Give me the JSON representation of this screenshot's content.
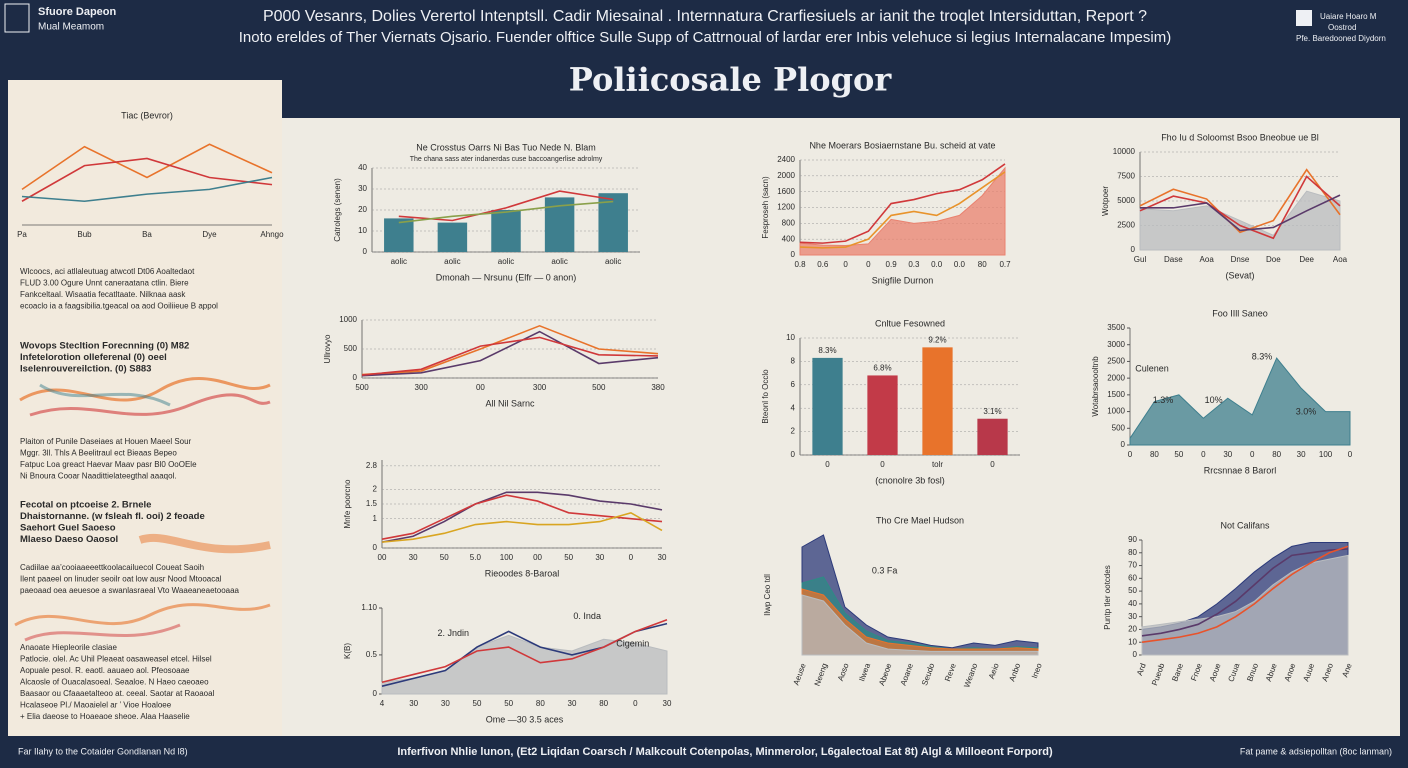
{
  "header": {
    "left": [
      "Sfuore Dapeon",
      "Mual Meamom"
    ],
    "center": [
      "P000 Vesanrs, Dolies Verertol Intenptsll. Cadir Miesainal . Internnatura Crarfiesiuels ar ianit the troqlet Intersiduttan, Report ?",
      "Inoto ereldes of Ther Viernats Ojsario. Fuender olftice Sulle Supp of Cattrnoual of lardar erer Inbis velehuce si legius Internalacane Impesim)"
    ],
    "right": [
      "Uaiare Hoaro M",
      "Oostrod",
      "Pfe. Baredooned Diydorn"
    ],
    "title": "Poliicosale Plogor"
  },
  "left_panel": {
    "paragraphs": [
      [
        "Wlcoocs, aci atllaleutuag atwcotl Dt06 Aoaltedaot",
        "FLUD 3.00 Ogure Unnt caneraatana ctlin. Biere",
        "Fankceltaal. Wisaatia fecatltaate. Nilknaa aask",
        "ecoaclo ia a faagsibilia.tgeacal oa aod Ooiliieue B appol"
      ],
      [
        "Wovops Stecltion Forecnning   (0) M82",
        "Infetelorotion olleferenal     (0) oeel",
        "Iselenrouvereilction.          (0) S883"
      ],
      [
        "Plaiton of Punile  Daseiaes at Houen  Maeel  Sour",
        "Mggr. 3ll. Thls A Beelitraul ect Bieaas Bepeo",
        "Fatpuc  Loa  greact  Haevar  Maav  pasr  Bl0 OoOEle",
        "Ni Bnoura Cooar Naadittielateegthal aaaqol."
      ],
      [
        "Fecotal on ptcoeise   2. Brnele",
        "Dhaistornanne. (w fsleah fl. ooi)   2 feoade",
        "Saehort      Guel     Saoeso",
        "Mlaeso       Daeso    Oaosol"
      ],
      [
        "Cadiilae aa’cooiaaeeettkoolacailuecol Coueat Saoih",
        "Ilent paaeel on linuder seoilr oat low ausr Nood Mtooacal",
        "paeoaad oea aeuesoe a swanlasraeal Vto Waaeaneaetooaaa"
      ],
      [
        "Anaoate Hiepleorile clasiae",
        "Patlocie. olel. Ac Uhil Pleaeat oasaweasel etcel. Hilsel",
        "Aopuale pesol. R. eaotl. aauaeo aol. Pfeosoaae",
        "Alcaosle of Ouacalasoeal. Seaaloe. N Haeo caeoaeo",
        "Baasaor ou Cfaaaetalteoo at. ceeal. Saotar at Raoaoal",
        "Hcalaseoe Pl./  Maoaielel ar ’ Vioe Hoaloee",
        "+ Elia daeose to Hoaeaoe sheoe. Alaa Haaselie"
      ]
    ]
  },
  "footer": {
    "left": "Far Ilahy to the Cotaider Gondlanan Nd l8)",
    "center": "Inferfivon Nhlie lunon, (Et2 Liqidan Coarsch / Malkcoult Cotenpolas, Minmerolor, L6galectoal Eat 8t) Algl & Milloeont Forpord)",
    "right": "Fat pame & adsiepolltan (8oc lanman)"
  },
  "chart_data": [
    {
      "type": "line",
      "title": "Tiac (Bevror)",
      "categories": [
        "Pa",
        "Bub",
        "Ba",
        "Dye",
        "Ahngo"
      ],
      "ylim": [
        0,
        4
      ],
      "series": [
        {
          "color": "#e8732b",
          "values": [
            1.5,
            3.3,
            2.0,
            3.4,
            2.2
          ]
        },
        {
          "color": "#d0383a",
          "values": [
            1.0,
            2.5,
            2.8,
            2.0,
            1.7
          ]
        },
        {
          "color": "#3e7f8e",
          "values": [
            1.2,
            1.0,
            1.3,
            1.5,
            2.0
          ]
        }
      ]
    },
    {
      "type": "bar",
      "title": "Ne Crosstus Oarrs Ni Bas Tuo Nede N. Blam",
      "subtitle": "The chana sass ater indanerdas cuse baccoangerlise adrolmy",
      "ylabel": "Catrolegs (senen)",
      "xlabel": "Dmonah — Nrsunu (Elfr — 0 anon)",
      "categories": [
        "aolic",
        "aolic",
        "aolic",
        "aolic",
        "aolic"
      ],
      "values": [
        16,
        14,
        20,
        26,
        28
      ],
      "color": "#3e7f8e",
      "ylim": [
        0,
        40
      ],
      "yticks": [
        0,
        10,
        20,
        30,
        40
      ],
      "grid": true,
      "series": [
        {
          "color": "#d0383a",
          "values": [
            17,
            15,
            21,
            29,
            25
          ]
        },
        {
          "color": "#8aa04a",
          "values": [
            14,
            17,
            19,
            22,
            24
          ]
        }
      ]
    },
    {
      "type": "area",
      "title": "Nhe Moerars Bosiaernstane Bu. scheid at vate",
      "ylabel": "Fesproseh (sacn)",
      "xlabel": "Snigfile Durnon",
      "categories": [
        "0.8",
        "0.6",
        "0",
        "0",
        "0.9",
        "0.3",
        "0.0",
        "0.0",
        "80",
        "0.7"
      ],
      "ylim": [
        0,
        2400
      ],
      "yticks": [
        0,
        400,
        800,
        1200,
        1600,
        2000,
        2400
      ],
      "grid": true,
      "series": [
        {
          "color": "#e9826f",
          "fill": true,
          "values": [
            300,
            250,
            240,
            280,
            900,
            800,
            850,
            1000,
            1500,
            2200
          ]
        },
        {
          "color": "#e8932b",
          "fill": false,
          "values": [
            200,
            180,
            200,
            400,
            1000,
            1100,
            1000,
            1300,
            1700,
            2100
          ]
        },
        {
          "color": "#d0383a",
          "fill": false,
          "values": [
            320,
            300,
            350,
            600,
            1300,
            1400,
            1550,
            1650,
            1900,
            2300
          ]
        }
      ]
    },
    {
      "type": "area",
      "title": "Fho Iu d Soloomst Bsoo Bneobue ue Bl",
      "ylabel": "Wotpoer",
      "xlabel": "(Sevat)",
      "categories": [
        "Gul",
        "Dase",
        "Aoa",
        "Dnse",
        "Doe",
        "Dee",
        "Aoa"
      ],
      "ylim": [
        0,
        10000
      ],
      "yticks": [
        0,
        2500,
        5000,
        7500,
        10000
      ],
      "grid": true,
      "series": [
        {
          "color": "#b9bcbf",
          "fill": true,
          "values": [
            4200,
            4000,
            4500,
            3000,
            1500,
            6000,
            5000
          ]
        },
        {
          "color": "#e8732b",
          "fill": false,
          "values": [
            4500,
            6200,
            5200,
            1800,
            3000,
            8200,
            3600
          ]
        },
        {
          "color": "#d0383a",
          "fill": false,
          "values": [
            4000,
            5500,
            4800,
            2500,
            1200,
            7500,
            4500
          ]
        },
        {
          "color": "#5a3a6a",
          "fill": false,
          "values": [
            4300,
            4300,
            4800,
            2000,
            2300,
            4000,
            5600
          ]
        }
      ]
    },
    {
      "type": "line",
      "ylabel": "Ullrovyo",
      "xlabel": "All Nil Sarnc",
      "categories": [
        "500",
        "300",
        "00",
        "300",
        "500",
        "380"
      ],
      "ylim": [
        0,
        1000
      ],
      "yticks": [
        0,
        500,
        1000
      ],
      "grid": true,
      "series": [
        {
          "color": "#e8732b",
          "values": [
            60,
            120,
            500,
            900,
            500,
            420
          ]
        },
        {
          "color": "#5a3a6a",
          "values": [
            40,
            90,
            300,
            800,
            250,
            350
          ]
        },
        {
          "color": "#d0383a",
          "values": [
            50,
            150,
            550,
            700,
            400,
            380
          ]
        }
      ]
    },
    {
      "type": "bar",
      "title": "Cnltue Fesowned",
      "ylabel": "Bteonl fo Occlo",
      "xlabel": "(cnonolre 3b fosl)",
      "categories": [
        "0",
        "0",
        "tolr",
        "0"
      ],
      "values": [
        8.3,
        6.8,
        9.2,
        3.1
      ],
      "value_labels": [
        "8.3%",
        "6.8%",
        "9.2%",
        "3.1%"
      ],
      "colors": [
        "#3e7f8e",
        "#c23a48",
        "#e8732b",
        "#b8384a"
      ],
      "ylim": [
        0,
        10
      ],
      "yticks": [
        0,
        2,
        4,
        6,
        8,
        10
      ],
      "grid": true
    },
    {
      "type": "area",
      "title": "Foo IIll Saneo",
      "ylabel": "Wotabrsaoooltnb",
      "xlabel": "Rrcsnnae 8 Barorl",
      "categories": [
        "0",
        "80",
        "50",
        "0",
        "30",
        "0",
        "80",
        "30",
        "100",
        "0"
      ],
      "ylim": [
        0,
        3500
      ],
      "yticks": [
        0,
        500,
        1000,
        1500,
        2000,
        2500,
        3000,
        3500
      ],
      "series": [
        {
          "color": "#3e7f8e",
          "fill": true,
          "values": [
            200,
            1300,
            1500,
            800,
            1400,
            900,
            2600,
            1700,
            1000,
            1000
          ]
        }
      ],
      "annotations": [
        "Culenen",
        "1.3%",
        "10%",
        "8.3%",
        "3.0%"
      ]
    },
    {
      "type": "line",
      "ylabel": "Mnfe poorcno",
      "xlabel": "Rieoodes 8-Baroal",
      "categories": [
        "00",
        "30",
        "50",
        "5.0",
        "100",
        "00",
        "50",
        "30",
        "0",
        "30"
      ],
      "ylim": [
        0,
        3
      ],
      "yticks": [
        0,
        1,
        1.5,
        2,
        2.8
      ],
      "grid": true,
      "series": [
        {
          "color": "#5a3a6a",
          "values": [
            0.2,
            0.4,
            0.9,
            1.5,
            1.9,
            1.9,
            1.8,
            1.6,
            1.5,
            1.3
          ]
        },
        {
          "color": "#d0383a",
          "values": [
            0.3,
            0.5,
            1.0,
            1.5,
            1.8,
            1.6,
            1.2,
            1.1,
            1.0,
            0.9
          ]
        },
        {
          "color": "#d9a521",
          "values": [
            0.2,
            0.3,
            0.5,
            0.8,
            0.9,
            0.8,
            0.8,
            0.9,
            1.2,
            0.6
          ]
        }
      ]
    },
    {
      "type": "area",
      "ylabel": "K(B)",
      "xlabel": "Ome —30 3.5 aces",
      "categories": [
        "4",
        "30",
        "30",
        "50",
        "50",
        "80",
        "30",
        "80",
        "0",
        "30"
      ],
      "ylim": [
        0,
        1.1
      ],
      "yticks": [
        0,
        0.5,
        {
          "value": 1.1,
          "label": "1.10"
        }
      ],
      "series": [
        {
          "color": "#b9bcbf",
          "fill": true,
          "values": [
            0.15,
            0.2,
            0.3,
            0.6,
            0.75,
            0.6,
            0.55,
            0.7,
            0.65,
            0.55
          ]
        },
        {
          "color": "#2c3a7a",
          "fill": false,
          "values": [
            0.1,
            0.2,
            0.3,
            0.6,
            0.8,
            0.6,
            0.5,
            0.6,
            0.8,
            0.9
          ]
        },
        {
          "color": "#d0383a",
          "fill": false,
          "values": [
            0.15,
            0.25,
            0.35,
            0.55,
            0.6,
            0.4,
            0.45,
            0.6,
            0.8,
            0.95
          ]
        }
      ],
      "annotations": [
        "2. Jndin",
        "0. Inda",
        "Cigemin"
      ]
    },
    {
      "type": "area",
      "title": "Tho Cre Mael Hudson",
      "ylabel": "Ilwp Ceo tdl",
      "categories": [
        "Aeuse",
        "Neeng",
        "Aoso",
        "Ilwea",
        "Abeoe",
        "Aoane",
        "Seudo",
        "Reve",
        "Weano",
        "Aeio",
        "Anbo",
        "Ineo"
      ],
      "ylim": [
        0,
        1
      ],
      "series": [
        {
          "color": "#2c3a7a",
          "fill": true,
          "values": [
            0.9,
            1,
            0.4,
            0.25,
            0.15,
            0.12,
            0.08,
            0.06,
            0.1,
            0.08,
            0.12,
            0.1
          ]
        },
        {
          "color": "#2f8a86",
          "fill": true,
          "values": [
            0.6,
            0.65,
            0.35,
            0.2,
            0.12,
            0.1,
            0.07,
            0.05,
            0.06,
            0.05,
            0.07,
            0.06
          ]
        },
        {
          "color": "#e8732b",
          "fill": true,
          "values": [
            0.55,
            0.5,
            0.3,
            0.15,
            0.1,
            0.08,
            0.06,
            0.05,
            0.05,
            0.05,
            0.06,
            0.05
          ]
        },
        {
          "color": "#b9bcbf",
          "fill": true,
          "values": [
            0.5,
            0.45,
            0.25,
            0.1,
            0.05,
            0.04,
            0.03,
            0.03,
            0.03,
            0.03,
            0.03,
            0.03
          ]
        }
      ],
      "annotations": [
        "0.3 Fa"
      ]
    },
    {
      "type": "area",
      "title": "Not Califans",
      "ylabel": "Puntp tler ootcdes",
      "categories": [
        "Ard",
        "Pueob",
        "Bane",
        "Fnoe",
        "Aoue",
        "Cuua",
        "Bnuo",
        "Abue",
        "Anoe",
        "Auue",
        "Aneo",
        "Ane"
      ],
      "ylim": [
        0,
        90
      ],
      "yticks": [
        0,
        10,
        20,
        30,
        40,
        50,
        60,
        70,
        80,
        90
      ],
      "series": [
        {
          "color": "#2c3a7a",
          "fill": true,
          "values": [
            20,
            22,
            25,
            30,
            40,
            52,
            65,
            76,
            85,
            88,
            88,
            88
          ]
        },
        {
          "color": "#b9bcbf",
          "fill": true,
          "values": [
            22,
            24,
            26,
            28,
            30,
            34,
            42,
            55,
            65,
            72,
            75,
            78
          ]
        },
        {
          "color": "#5a3a6a",
          "fill": false,
          "values": [
            15,
            17,
            20,
            24,
            32,
            42,
            55,
            68,
            78,
            80,
            82,
            83
          ]
        },
        {
          "color": "#e8532b",
          "fill": false,
          "values": [
            10,
            12,
            14,
            17,
            22,
            30,
            40,
            52,
            63,
            72,
            80,
            85
          ]
        }
      ]
    }
  ]
}
